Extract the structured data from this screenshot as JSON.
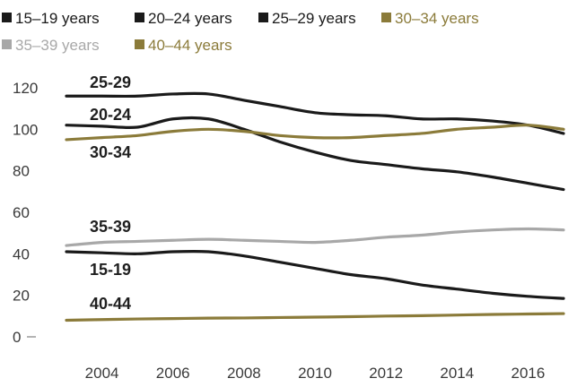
{
  "chart_data": {
    "type": "line",
    "title": "",
    "xlabel": "",
    "ylabel": "",
    "ylim": [
      0,
      120
    ],
    "xlim": [
      2003,
      2017
    ],
    "grid": false,
    "legend_position": "top",
    "x": [
      2003,
      2004,
      2005,
      2006,
      2007,
      2008,
      2009,
      2010,
      2011,
      2012,
      2013,
      2014,
      2015,
      2016,
      2017
    ],
    "x_ticks": [
      "2004",
      "2006",
      "2008",
      "2010",
      "2012",
      "2014",
      "2016"
    ],
    "y_ticks": [
      "0",
      "20",
      "40",
      "60",
      "80",
      "100",
      "120"
    ],
    "legend": [
      "15–19 years",
      "20–24 years",
      "25–29 years",
      "30–34 years",
      "35–39 years",
      "40–44 years"
    ],
    "series": [
      {
        "name": "15–19 years",
        "label": "15-19",
        "color": "#1a1a1a",
        "values": [
          41,
          40.5,
          40,
          41,
          41,
          39,
          36,
          33,
          30,
          28,
          25,
          23,
          21,
          19.5,
          18.5
        ]
      },
      {
        "name": "20–24 years",
        "label": "20-24",
        "color": "#1a1a1a",
        "values": [
          102,
          101.5,
          101,
          105,
          105,
          100,
          94,
          89,
          85,
          83,
          81,
          79.5,
          77,
          74,
          71
        ]
      },
      {
        "name": "25–29 years",
        "label": "25-29",
        "color": "#1a1a1a",
        "values": [
          116,
          116,
          116,
          117,
          117,
          114,
          111,
          108,
          107,
          106.5,
          105,
          105,
          104,
          102,
          98
        ]
      },
      {
        "name": "30–34 years",
        "label": "30-34",
        "color": "#8b7b3a",
        "values": [
          95,
          96,
          97,
          99,
          100,
          99,
          97,
          96,
          96,
          97,
          98,
          100,
          101,
          102,
          100
        ]
      },
      {
        "name": "35–39 years",
        "label": "35-39",
        "color": "#a8a8a8",
        "values": [
          44,
          45.5,
          46,
          46.5,
          47,
          46.5,
          46,
          45.5,
          46.5,
          48,
          49,
          50.5,
          51.5,
          52,
          51.5
        ]
      },
      {
        "name": "40–44 years",
        "label": "40-44",
        "color": "#8b7b3a",
        "values": [
          8,
          8.3,
          8.6,
          8.8,
          9,
          9.1,
          9.3,
          9.5,
          9.7,
          10,
          10.2,
          10.5,
          10.8,
          11,
          11.2
        ]
      }
    ]
  }
}
